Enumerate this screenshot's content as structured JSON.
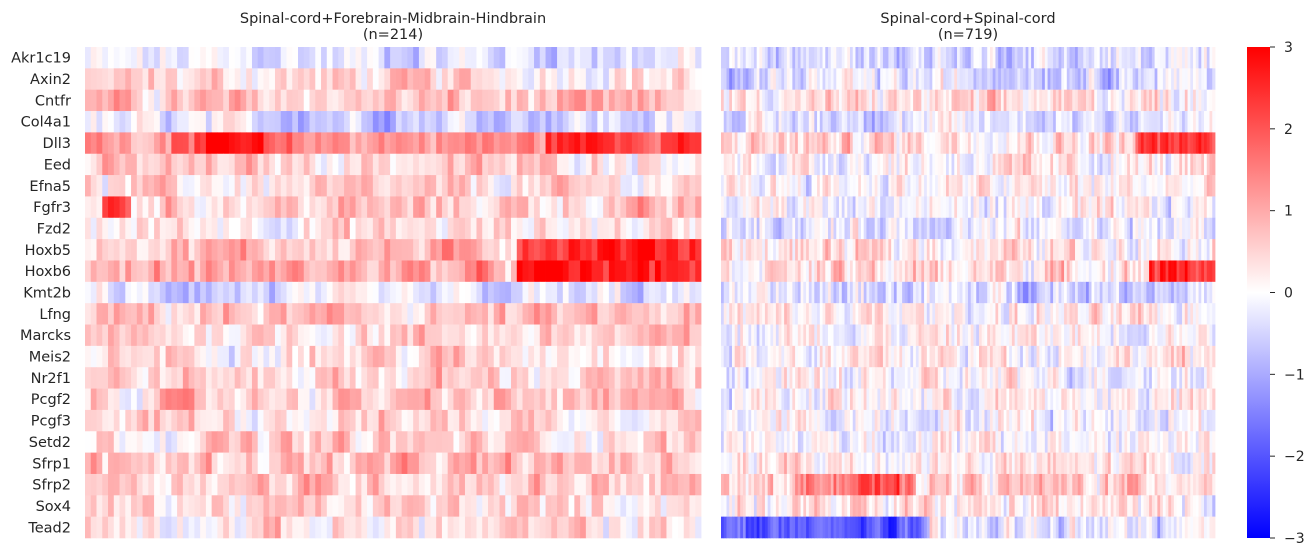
{
  "colors": {
    "low": "#0000ff",
    "mid": "#ffffff",
    "high": "#ff0000",
    "background": "#ffffff",
    "text": "#262626"
  },
  "chart_data": {
    "type": "heatmap",
    "colormap": "bwr",
    "value_range": [
      -3,
      3
    ],
    "genes": [
      "Akr1c19",
      "Axin2",
      "Cntfr",
      "Col4a1",
      "Dll3",
      "Eed",
      "Efna5",
      "Fgfr3",
      "Fzd2",
      "Hoxb5",
      "Hoxb6",
      "Kmt2b",
      "Lfng",
      "Marcks",
      "Meis2",
      "Nr2f1",
      "Pcgf2",
      "Pcgf3",
      "Setd2",
      "Sfrp1",
      "Sfrp2",
      "Sox4",
      "Tead2"
    ],
    "panels": [
      {
        "title_line1": "Spinal-cord+Forebrain-Midbrain-Hindbrain",
        "title_line2": "(n=214)",
        "n_cells": 214,
        "gene_mean_zscore": [
          -0.3,
          0.4,
          0.6,
          -0.4,
          1.3,
          0.5,
          0.3,
          0.6,
          0.3,
          0.8,
          1.0,
          -0.5,
          0.6,
          0.5,
          0.5,
          0.5,
          0.6,
          0.5,
          0.5,
          0.7,
          0.7,
          0.4,
          0.3
        ],
        "approx_hotspots": [
          {
            "gene": "Dll3",
            "cells": "30-60 and 160-214",
            "value": 2.5
          },
          {
            "gene": "Hoxb5",
            "cells": "150-214",
            "value": 2.6
          },
          {
            "gene": "Hoxb6",
            "cells": "150-214",
            "value": 2.6
          },
          {
            "gene": "Fgfr3",
            "cells": "5-15",
            "value": 2.2
          }
        ]
      },
      {
        "title_line1": "Spinal-cord+Spinal-cord",
        "title_line2": "(n=719)",
        "n_cells": 719,
        "gene_mean_zscore": [
          -0.4,
          -0.3,
          0.3,
          -0.3,
          0.5,
          0.1,
          0.1,
          -0.1,
          -0.2,
          0.3,
          0.4,
          -0.4,
          0.1,
          0.1,
          0.2,
          0.0,
          0.1,
          0.0,
          0.0,
          0.2,
          0.6,
          0.2,
          -0.3
        ],
        "approx_hotspots": [
          {
            "gene": "Dll3",
            "cells": "600-719",
            "value": 2.2
          },
          {
            "gene": "Hoxb6",
            "cells": "620-719",
            "value": 2.5
          },
          {
            "gene": "Sfrp2",
            "cells": "120-280",
            "value": 1.8
          },
          {
            "gene": "Tead2",
            "cells": "0-300",
            "value": -2.0
          }
        ]
      }
    ],
    "colorbar": {
      "ticks": [
        3,
        2,
        1,
        0,
        -1,
        -2,
        -3
      ],
      "tick_labels": [
        "3",
        "2",
        "1",
        "0",
        "−1",
        "−2",
        "−3"
      ]
    }
  }
}
